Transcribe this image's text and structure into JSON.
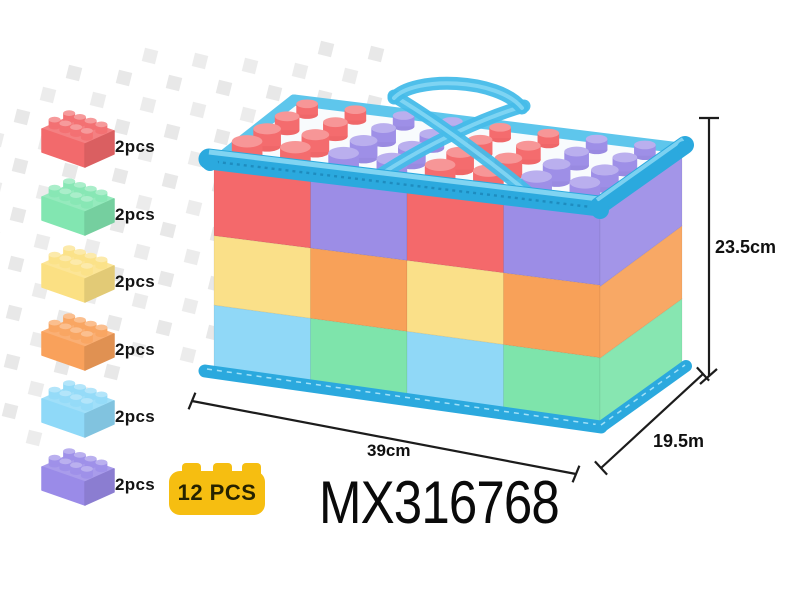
{
  "product_code": "MX316768",
  "badge": {
    "label": "12 PCS",
    "color": "#F6BE11",
    "text_color": "#262200"
  },
  "dimensions": {
    "width_label": "39cm",
    "depth_label": "19.5m",
    "height_label": "23.5cm"
  },
  "parts_list": {
    "items": [
      {
        "name": "red-brick",
        "color": "#F26A6C",
        "qty_label": "2pcs"
      },
      {
        "name": "green-brick",
        "color": "#82E6B1",
        "qty_label": "2pcs"
      },
      {
        "name": "yellow-brick",
        "color": "#FBE083",
        "qty_label": "2pcs"
      },
      {
        "name": "orange-brick",
        "color": "#F9A15B",
        "qty_label": "2pcs"
      },
      {
        "name": "blue-brick",
        "color": "#8FD9F8",
        "qty_label": "2pcs"
      },
      {
        "name": "purple-brick",
        "color": "#9A8BE8",
        "qty_label": "2pcs"
      }
    ]
  },
  "background": {
    "pattern_color": "#e8e8e8"
  },
  "bag": {
    "trim_color": "#2BA9DE",
    "trim_light": "#8FDCF6",
    "trim_back": "#5EC6EC",
    "zipper_color": "#1C86B8",
    "handle_color": "#46BCE9",
    "handle_light": "#8ADAF5",
    "interior_color": "#f8fbfd",
    "stitch_color": "#aee8fb",
    "line_color": "#1c1c1c",
    "palette": {
      "red": "#F4696B",
      "purple": "#9C8DE6",
      "yellow": "#FAE089",
      "orange": "#F8A159",
      "skyblue": "#90D8F7",
      "green": "#7EE4AB"
    },
    "front_grid": [
      [
        "red",
        "purple",
        "red",
        "purple"
      ],
      [
        "yellow",
        "orange",
        "yellow",
        "orange"
      ],
      [
        "skyblue",
        "green",
        "skyblue",
        "green"
      ]
    ],
    "side_column": [
      "purple",
      "orange",
      "green"
    ],
    "stud_columns": [
      "red",
      "red",
      "purple",
      "purple",
      "red",
      "red",
      "purple",
      "purple"
    ]
  }
}
